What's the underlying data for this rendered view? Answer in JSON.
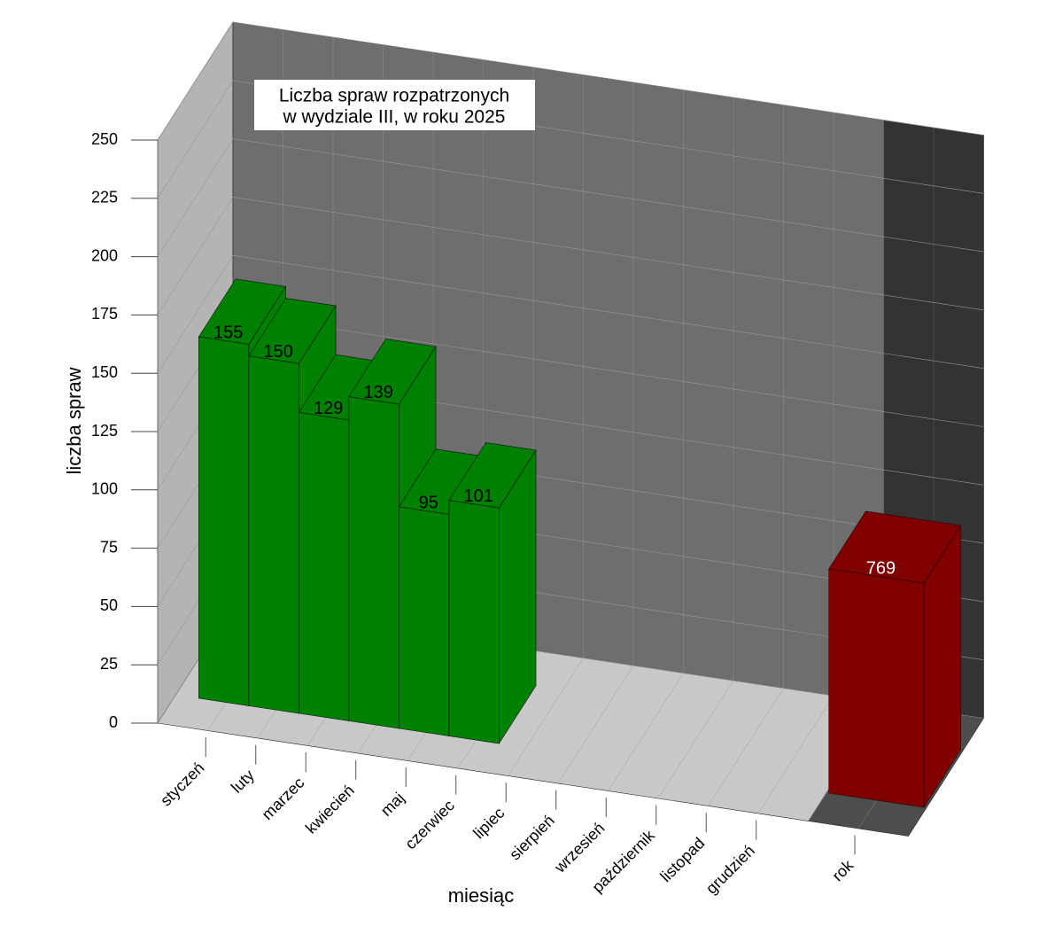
{
  "chart_data": {
    "type": "bar3d",
    "title": [
      "Liczba spraw rozpatrzonych",
      "w  wydziale III, w roku 2025"
    ],
    "y_label": "liczba spraw",
    "x_label": "miesiąc",
    "categories": [
      "styczeń",
      "luty",
      "marzec",
      "kwiecień",
      "maj",
      "czerwiec",
      "lipiec",
      "sierpień",
      "wrzesień",
      "październik",
      "listopad",
      "grudzień",
      "rok"
    ],
    "series": [
      {
        "color": "#008000",
        "values": [
          155,
          150,
          129,
          139,
          95,
          101,
          null,
          null,
          null,
          null,
          null,
          null,
          null
        ]
      },
      {
        "color": "#800000",
        "axis": "y2",
        "values": [
          null,
          null,
          null,
          null,
          null,
          null,
          null,
          null,
          null,
          null,
          null,
          null,
          769
        ]
      }
    ],
    "ylim": [
      0,
      250
    ],
    "yticks": [
      0,
      25,
      50,
      75,
      100,
      125,
      150,
      175,
      200,
      225,
      250
    ],
    "y2lim": [
      0,
      2000
    ],
    "grid": true
  }
}
